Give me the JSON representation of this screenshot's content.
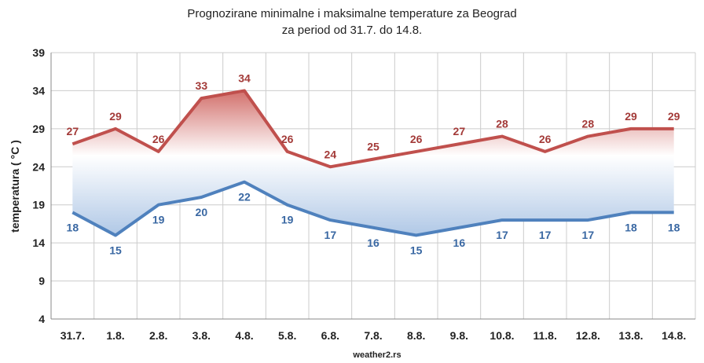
{
  "chart_data": {
    "type": "area",
    "title_line1": "Prognozirane minimalne  i maksimalne  temperature za Beograd",
    "title_line2": "za period od 31.7.  do 14.8.",
    "ylabel": "temperatura  ( °C )",
    "xlabel": "",
    "source": "weather2.rs",
    "categories": [
      "31.7.",
      "1.8.",
      "2.8.",
      "3.8.",
      "4.8.",
      "5.8.",
      "6.8.",
      "7.8.",
      "8.8.",
      "9.8.",
      "10.8.",
      "11.8.",
      "12.8.",
      "13.8.",
      "14.8."
    ],
    "yticks": [
      4,
      9,
      14,
      19,
      24,
      29,
      34,
      39
    ],
    "ylim": [
      4,
      39
    ],
    "grid": true,
    "series": [
      {
        "values": [
          27,
          29,
          26,
          33,
          34,
          26,
          24,
          25,
          26,
          27,
          28,
          26,
          28,
          29,
          29
        ]
      },
      {
        "values": [
          18,
          15,
          19,
          20,
          22,
          19,
          17,
          16,
          15,
          16,
          17,
          17,
          17,
          18,
          18
        ]
      }
    ],
    "colors": {
      "max_line": "#c0504d",
      "min_line": "#4f81bd",
      "max_label": "#a33a38",
      "min_label": "#3a68a3",
      "fill_top": "#d2706c",
      "fill_mid": "#ffffff",
      "fill_bottom": "#b0c8e6",
      "grid": "#cccccc"
    }
  }
}
